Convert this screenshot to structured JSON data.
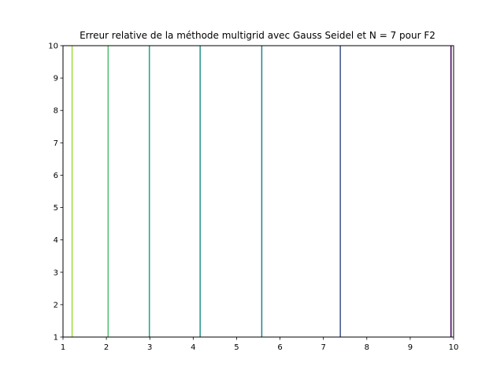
{
  "chart_data": {
    "type": "line",
    "title": "Erreur relative de la méthode multigrid avec Gauss Seidel et N = 7 pour F2",
    "xlabel": "",
    "ylabel": "",
    "xlim": [
      1,
      10
    ],
    "ylim": [
      1,
      10
    ],
    "xticks": [
      "1",
      "2",
      "3",
      "4",
      "5",
      "6",
      "7",
      "8",
      "9",
      "10"
    ],
    "yticks": [
      "1",
      "2",
      "3",
      "4",
      "5",
      "6",
      "7",
      "8",
      "9",
      "10"
    ],
    "grid": false,
    "series": [
      {
        "x": 1.21,
        "color": "#a0da39"
      },
      {
        "x": 2.04,
        "color": "#4ac16d"
      },
      {
        "x": 2.99,
        "color": "#1fa187"
      },
      {
        "x": 4.16,
        "color": "#21918c"
      },
      {
        "x": 5.58,
        "color": "#277f8e"
      },
      {
        "x": 7.39,
        "color": "#3b528b"
      },
      {
        "x": 9.94,
        "color": "#440154"
      }
    ]
  }
}
